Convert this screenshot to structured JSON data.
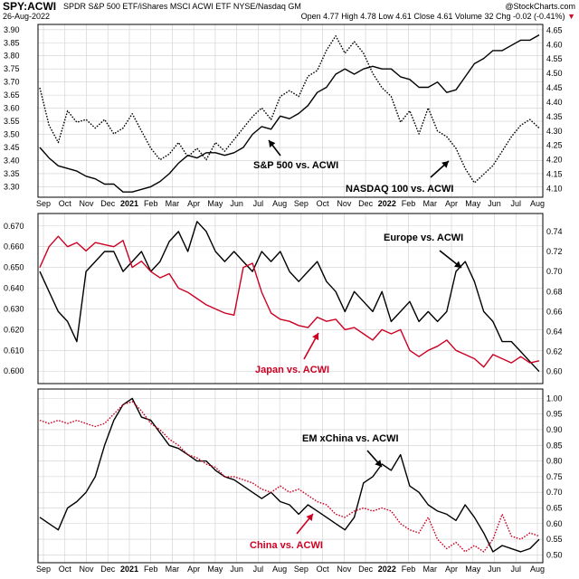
{
  "header": {
    "symbol": "SPY:ACWI",
    "description": "SPDR S&P 500 ETF/iShares MSCI ACWI ETF  NYSE/Nasdaq GM",
    "brand": "@StockCharts.com",
    "date": "26-Aug-2022",
    "open_label": "Open",
    "open": "4.77",
    "high_label": "High",
    "high": "4.78",
    "low_label": "Low",
    "low": "4.61",
    "close_label": "Close",
    "close": "4.61",
    "volume_label": "Volume",
    "volume": "32",
    "chg_label": "Chg",
    "chg": "-0.02 (-0.41%)",
    "chg_arrow": "▼"
  },
  "colors": {
    "black_series": "#000000",
    "red_series": "#cc0022",
    "grid": "#cfcfcf",
    "frame": "#000000"
  },
  "x_axis": {
    "top_ticks": [
      "Sep",
      "Oct",
      "Nov",
      "Dec",
      "2021",
      "Feb",
      "Mar",
      "Apr",
      "May",
      "Jun",
      "Jul",
      "Aug",
      "Sep",
      "Oct",
      "Nov",
      "Dec",
      "2022",
      "Feb",
      "Mar",
      "Apr",
      "May",
      "Jun",
      "Jul",
      "Aug"
    ],
    "bottom_ticks": [
      "Sep",
      "Oct",
      "Nov",
      "Dec",
      "2021",
      "Feb",
      "Mar",
      "Apr",
      "May",
      "Jun",
      "Jul",
      "Aug",
      "Sep",
      "Oct",
      "Nov",
      "Dec",
      "2022",
      "Feb",
      "Mar",
      "Apr",
      "May",
      "Jun",
      "Jul",
      "Aug"
    ],
    "bold_ticks": [
      "2021",
      "2022"
    ]
  },
  "chart_data": [
    {
      "type": "line",
      "panel": "top",
      "left_axis": {
        "ticks": [
          "3.30",
          "3.35",
          "3.40",
          "3.45",
          "3.50",
          "3.55",
          "3.60",
          "3.65",
          "3.70",
          "3.75",
          "3.80",
          "3.85",
          "3.90"
        ],
        "ylim": [
          3.26,
          3.92
        ]
      },
      "right_axis": {
        "ticks": [
          "4.10",
          "4.15",
          "4.20",
          "4.25",
          "4.30",
          "4.35",
          "4.40",
          "4.45",
          "4.50",
          "4.55",
          "4.60",
          "4.65"
        ],
        "ylim": [
          4.07,
          4.67
        ]
      },
      "series": [
        {
          "name": "S&P 500 vs. ACWI",
          "axis": "left",
          "style": "solid",
          "color": "#000000",
          "values": [
            3.45,
            3.41,
            3.38,
            3.37,
            3.36,
            3.34,
            3.33,
            3.31,
            3.31,
            3.28,
            3.28,
            3.29,
            3.3,
            3.32,
            3.35,
            3.39,
            3.42,
            3.41,
            3.43,
            3.43,
            3.42,
            3.43,
            3.45,
            3.5,
            3.53,
            3.52,
            3.57,
            3.56,
            3.58,
            3.61,
            3.66,
            3.68,
            3.73,
            3.75,
            3.73,
            3.75,
            3.76,
            3.75,
            3.75,
            3.72,
            3.71,
            3.68,
            3.68,
            3.7,
            3.66,
            3.67,
            3.72,
            3.77,
            3.79,
            3.82,
            3.82,
            3.84,
            3.86,
            3.86,
            3.88
          ]
        },
        {
          "name": "NASDAQ 100 vs. ACWI",
          "axis": "right",
          "style": "dotted",
          "color": "#000000",
          "values": [
            4.45,
            4.32,
            4.26,
            4.37,
            4.33,
            4.34,
            4.31,
            4.34,
            4.29,
            4.31,
            4.36,
            4.3,
            4.24,
            4.2,
            4.22,
            4.26,
            4.21,
            4.24,
            4.2,
            4.26,
            4.23,
            4.27,
            4.31,
            4.35,
            4.38,
            4.34,
            4.42,
            4.44,
            4.42,
            4.49,
            4.51,
            4.58,
            4.63,
            4.57,
            4.61,
            4.57,
            4.5,
            4.45,
            4.42,
            4.33,
            4.37,
            4.29,
            4.38,
            4.3,
            4.28,
            4.24,
            4.17,
            4.12,
            4.15,
            4.18,
            4.23,
            4.28,
            4.32,
            4.34,
            4.31
          ]
        }
      ],
      "annotations": [
        "S&P 500 vs. ACWI",
        "NASDAQ 100 vs. ACWI"
      ]
    },
    {
      "type": "line",
      "panel": "middle",
      "left_axis": {
        "ticks": [
          "0.600",
          "0.610",
          "0.620",
          "0.630",
          "0.640",
          "0.650",
          "0.660",
          "0.670"
        ],
        "ylim": [
          0.594,
          0.676
        ]
      },
      "right_axis": {
        "ticks": [
          "0.60",
          "0.62",
          "0.64",
          "0.66",
          "0.68",
          "0.70",
          "0.72",
          "0.74"
        ],
        "ylim": [
          0.588,
          0.758
        ]
      },
      "series": [
        {
          "name": "Europe vs. ACWI",
          "axis": "right",
          "style": "solid",
          "color": "#000000",
          "values": [
            0.7,
            0.68,
            0.66,
            0.65,
            0.63,
            0.7,
            0.71,
            0.72,
            0.72,
            0.7,
            0.71,
            0.72,
            0.7,
            0.71,
            0.73,
            0.74,
            0.72,
            0.75,
            0.74,
            0.72,
            0.71,
            0.72,
            0.71,
            0.7,
            0.72,
            0.71,
            0.72,
            0.7,
            0.69,
            0.7,
            0.71,
            0.69,
            0.68,
            0.66,
            0.68,
            0.67,
            0.66,
            0.68,
            0.65,
            0.66,
            0.67,
            0.65,
            0.66,
            0.65,
            0.66,
            0.7,
            0.71,
            0.69,
            0.66,
            0.65,
            0.63,
            0.63,
            0.62,
            0.61,
            0.6
          ]
        },
        {
          "name": "Japan vs. ACWI",
          "axis": "left",
          "style": "solid",
          "color": "#cc0022",
          "values": [
            0.65,
            0.66,
            0.665,
            0.66,
            0.662,
            0.658,
            0.662,
            0.661,
            0.66,
            0.663,
            0.65,
            0.653,
            0.648,
            0.645,
            0.647,
            0.64,
            0.638,
            0.635,
            0.632,
            0.63,
            0.628,
            0.627,
            0.65,
            0.652,
            0.638,
            0.628,
            0.625,
            0.624,
            0.622,
            0.621,
            0.626,
            0.624,
            0.625,
            0.62,
            0.621,
            0.618,
            0.615,
            0.62,
            0.618,
            0.62,
            0.61,
            0.607,
            0.61,
            0.612,
            0.615,
            0.61,
            0.608,
            0.606,
            0.602,
            0.608,
            0.606,
            0.604,
            0.607,
            0.604,
            0.605
          ]
        }
      ],
      "annotations": [
        "Europe vs. ACWI",
        "Japan vs. ACWI"
      ]
    },
    {
      "type": "line",
      "panel": "bottom",
      "right_axis": {
        "ticks": [
          "0.50",
          "0.55",
          "0.60",
          "0.65",
          "0.70",
          "0.75",
          "0.80",
          "0.85",
          "0.90",
          "0.95",
          "1.00"
        ],
        "ylim": [
          0.475,
          1.03
        ]
      },
      "series": [
        {
          "name": "EM xChina vs. ACWI",
          "axis": "right",
          "style": "solid",
          "color": "#000000",
          "values": [
            0.62,
            0.6,
            0.58,
            0.65,
            0.67,
            0.7,
            0.75,
            0.85,
            0.93,
            0.98,
            1.0,
            0.94,
            0.93,
            0.89,
            0.85,
            0.84,
            0.82,
            0.8,
            0.8,
            0.77,
            0.75,
            0.74,
            0.72,
            0.7,
            0.68,
            0.7,
            0.67,
            0.66,
            0.63,
            0.66,
            0.64,
            0.62,
            0.6,
            0.58,
            0.62,
            0.73,
            0.75,
            0.79,
            0.77,
            0.82,
            0.72,
            0.7,
            0.66,
            0.64,
            0.63,
            0.61,
            0.66,
            0.62,
            0.57,
            0.51,
            0.53,
            0.52,
            0.51,
            0.52,
            0.55
          ]
        },
        {
          "name": "China vs. ACWI",
          "axis": "right",
          "style": "dotted",
          "color": "#cc0022",
          "values": [
            0.93,
            0.92,
            0.93,
            0.92,
            0.93,
            0.92,
            0.91,
            0.92,
            0.95,
            0.98,
            0.99,
            0.96,
            0.92,
            0.9,
            0.87,
            0.85,
            0.82,
            0.81,
            0.79,
            0.78,
            0.75,
            0.75,
            0.74,
            0.73,
            0.71,
            0.7,
            0.72,
            0.7,
            0.71,
            0.69,
            0.67,
            0.66,
            0.63,
            0.62,
            0.64,
            0.65,
            0.64,
            0.65,
            0.64,
            0.6,
            0.58,
            0.57,
            0.62,
            0.55,
            0.52,
            0.54,
            0.51,
            0.53,
            0.51,
            0.55,
            0.63,
            0.56,
            0.55,
            0.57,
            0.56
          ]
        }
      ],
      "annotations": [
        "EM xChina vs. ACWI",
        "China vs. ACWI"
      ]
    }
  ]
}
